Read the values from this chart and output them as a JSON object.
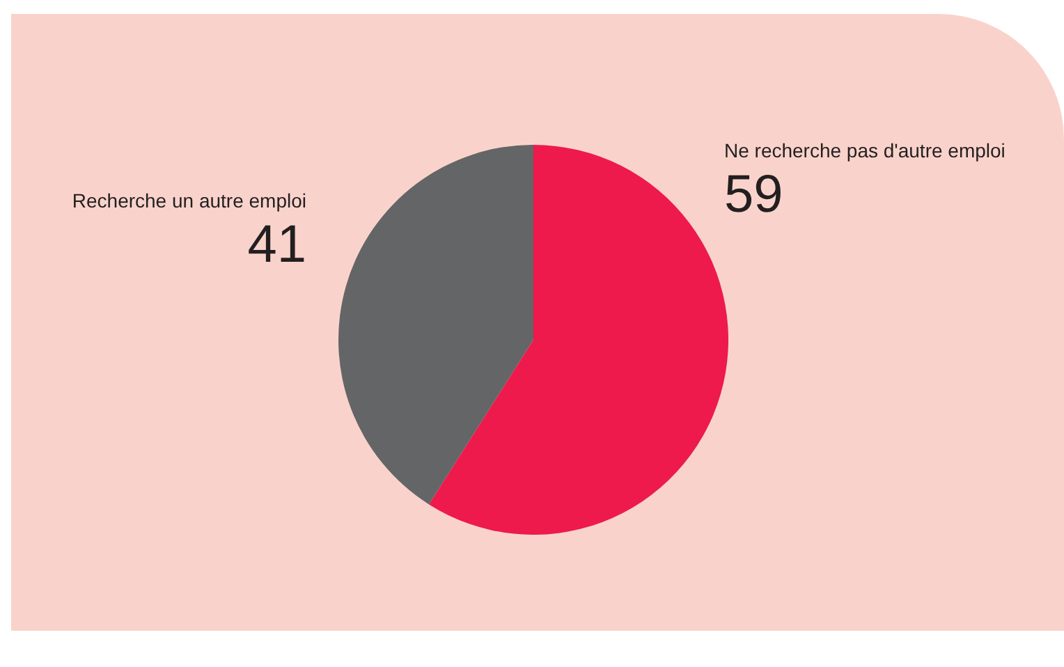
{
  "chart_data": {
    "type": "pie",
    "categories": [
      "Ne recherche pas d'autre emploi",
      "Recherche un autre emploi"
    ],
    "values": [
      59,
      41
    ],
    "colors": [
      "#ee1a4c",
      "#646567"
    ],
    "data_labels": true,
    "legend": false
  }
}
